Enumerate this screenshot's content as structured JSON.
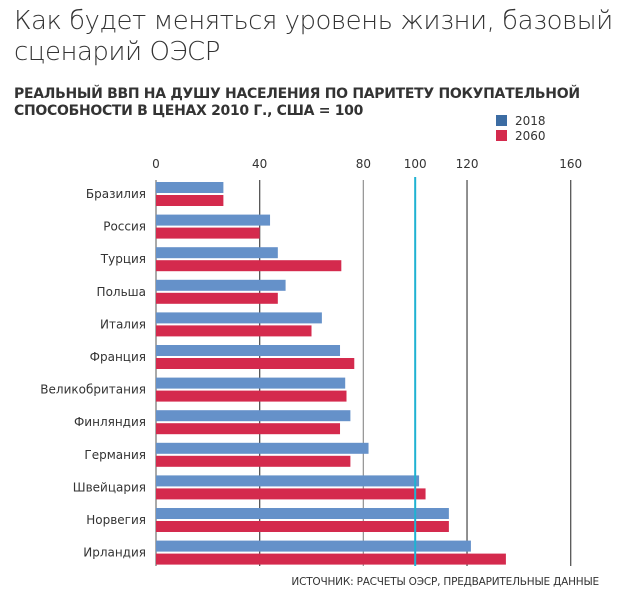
{
  "title": "Как будет меняться уровень жизни, базовый сценарий ОЭСР",
  "subtitle": "РЕАЛЬНЫЙ ВВП НА ДУШУ НАСЕЛЕНИЯ ПО ПАРИТЕТУ ПОКУПАТЕЛЬНОЙ СПОСОБНОСТИ В ЦЕНАХ 2010 Г., США = 100",
  "source": "ИСТОЧНИК: РАСЧЕТЫ ОЭСР, ПРЕДВАРИТЕЛЬНЫЕ ДАННЫЕ",
  "chart_data": {
    "type": "bar",
    "orientation": "horizontal",
    "categories": [
      "Бразилия",
      "Россия",
      "Турция",
      "Польша",
      "Италия",
      "Франция",
      "Великобритания",
      "Финляндия",
      "Германия",
      "Швейцария",
      "Норвегия",
      "Ирландия"
    ],
    "series": [
      {
        "name": "2018",
        "color": "#6591c9",
        "values": [
          26,
          44,
          47,
          50,
          64,
          71,
          73,
          75,
          82,
          101.5,
          113,
          121.5
        ]
      },
      {
        "name": "2060",
        "color": "#d42a4d",
        "values": [
          26,
          40,
          71.5,
          47,
          60,
          76.5,
          73.5,
          71,
          75,
          104,
          113,
          135
        ]
      }
    ],
    "xticks": [
      0,
      40,
      80,
      100,
      120,
      160
    ],
    "xlim": [
      0,
      160
    ],
    "reference_line": {
      "value": 100,
      "color": "#1fb2d2"
    },
    "legend_colors": {
      "2018": "#3c6ca3",
      "2060": "#d42a4d"
    },
    "legend_position": "top-right",
    "grid": true
  }
}
